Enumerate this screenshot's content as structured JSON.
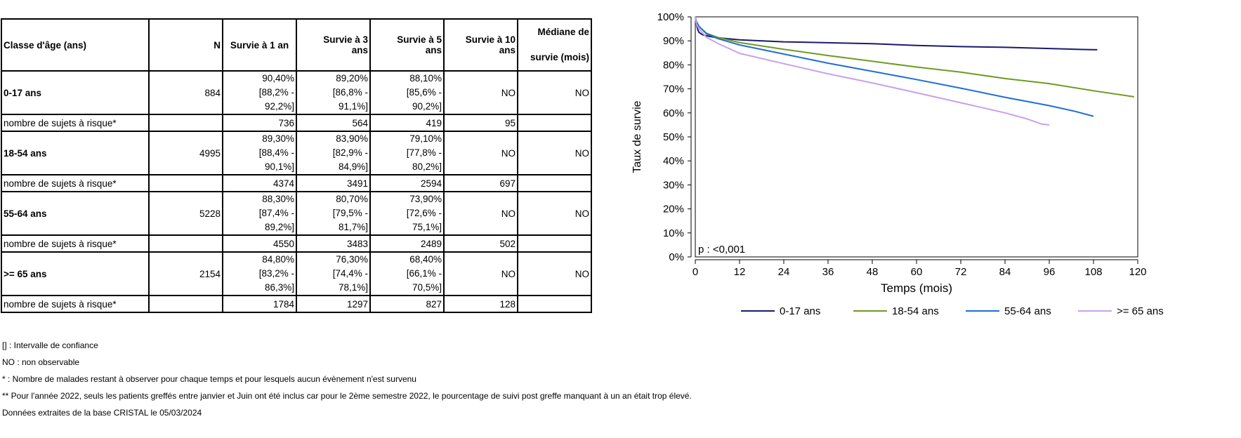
{
  "table": {
    "headers": {
      "classe": "Classe d'âge (ans)",
      "n": "N",
      "y1": "Survie à 1 an",
      "y3_a": "Survie à 3",
      "y3_b": "ans",
      "y5_a": "Survie à 5",
      "y5_b": "ans",
      "y10_a": "Survie à 10",
      "y10_b": "ans",
      "med_a": "Médiane de",
      "med_b": "survie (mois)"
    },
    "groups": [
      {
        "label": "0-17 ans",
        "n": "884",
        "y1": {
          "v": "90,40%",
          "lo": "[88,2% -",
          "hi": "92,2%]"
        },
        "y3": {
          "v": "89,20%",
          "lo": "[86,8% -",
          "hi": "91,1%]"
        },
        "y5": {
          "v": "88,10%",
          "lo": "[85,6% -",
          "hi": "90,2%]"
        },
        "y10": "NO",
        "median": "NO",
        "risk": {
          "label": "nombre de sujets à risque*",
          "y1": "736",
          "y3": "564",
          "y5": "419",
          "y10": "95"
        }
      },
      {
        "label": "18-54 ans",
        "n": "4995",
        "y1": {
          "v": "89,30%",
          "lo": "[88,4% -",
          "hi": "90,1%]"
        },
        "y3": {
          "v": "83,90%",
          "lo": "[82,9% -",
          "hi": "84,9%]"
        },
        "y5": {
          "v": "79,10%",
          "lo": "[77,8% -",
          "hi": "80,2%]"
        },
        "y10": "NO",
        "median": "NO",
        "risk": {
          "label": "nombre de sujets à risque*",
          "y1": "4374",
          "y3": "3491",
          "y5": "2594",
          "y10": "697"
        }
      },
      {
        "label": "55-64 ans",
        "n": "5228",
        "y1": {
          "v": "88,30%",
          "lo": "[87,4% -",
          "hi": "89,2%]"
        },
        "y3": {
          "v": "80,70%",
          "lo": "[79,5% -",
          "hi": "81,7%]"
        },
        "y5": {
          "v": "73,90%",
          "lo": "[72,6% -",
          "hi": "75,1%]"
        },
        "y10": "NO",
        "median": "NO",
        "risk": {
          "label": "nombre de sujets à risque*",
          "y1": "4550",
          "y3": "3483",
          "y5": "2489",
          "y10": "502"
        }
      },
      {
        "label": ">= 65 ans",
        "n": "2154",
        "y1": {
          "v": "84,80%",
          "lo": "[83,2% -",
          "hi": "86,3%]"
        },
        "y3": {
          "v": "76,30%",
          "lo": "[74,4% -",
          "hi": "78,1%]"
        },
        "y5": {
          "v": "68,40%",
          "lo": "[66,1% -",
          "hi": "70,5%]"
        },
        "y10": "NO",
        "median": "NO",
        "risk": {
          "label": "nombre de sujets à risque*",
          "y1": "1784",
          "y3": "1297",
          "y5": "827",
          "y10": "128"
        }
      }
    ]
  },
  "notes": [
    "[] : Intervalle de confiance",
    "NO : non observable",
    "* : Nombre de malades restant à observer pour chaque temps et pour lesquels aucun évènement n'est survenu",
    "** Pour l'année 2022, seuls les patients greffés entre janvier et Juin ont été inclus car pour le 2ème semestre 2022, le pourcentage de suivi post greffe manquant à un an était trop élevé.",
    "Données extraites de la base CRISTAL le 05/03/2024"
  ],
  "chart_data": {
    "type": "line",
    "title": "",
    "xlabel": "Temps (mois)",
    "ylabel": "Taux de survie",
    "xlim": [
      0,
      120
    ],
    "ylim": [
      0,
      100
    ],
    "xticks": [
      0,
      12,
      24,
      36,
      48,
      60,
      72,
      84,
      96,
      108,
      120
    ],
    "yticks": [
      0,
      10,
      20,
      30,
      40,
      50,
      60,
      70,
      80,
      90,
      100
    ],
    "ytick_suffix": "%",
    "grid": false,
    "legend_position": "bottom",
    "annotation": "p : <0,001",
    "series": [
      {
        "name": "0-17 ans",
        "color": "#1a1a6e",
        "points": [
          [
            0,
            100
          ],
          [
            0.3,
            97
          ],
          [
            0.7,
            94.5
          ],
          [
            1,
            93.5
          ],
          [
            2,
            92.5
          ],
          [
            4,
            91.8
          ],
          [
            6,
            91.3
          ],
          [
            12,
            90.4
          ],
          [
            24,
            89.6
          ],
          [
            36,
            89.2
          ],
          [
            48,
            88.8
          ],
          [
            60,
            88.1
          ],
          [
            72,
            87.6
          ],
          [
            84,
            87.3
          ],
          [
            96,
            86.8
          ],
          [
            105,
            86.4
          ],
          [
            109,
            86.3
          ]
        ]
      },
      {
        "name": "18-54 ans",
        "color": "#6e9b22",
        "points": [
          [
            0,
            100
          ],
          [
            0.3,
            98
          ],
          [
            1,
            96
          ],
          [
            3,
            93.2
          ],
          [
            6,
            91.5
          ],
          [
            12,
            89.3
          ],
          [
            24,
            86.5
          ],
          [
            36,
            83.9
          ],
          [
            48,
            81.5
          ],
          [
            60,
            79.1
          ],
          [
            72,
            77
          ],
          [
            84,
            74.3
          ],
          [
            96,
            72.2
          ],
          [
            108,
            69.2
          ],
          [
            119,
            66.7
          ]
        ]
      },
      {
        "name": "55-64 ans",
        "color": "#1e6ed6",
        "points": [
          [
            0,
            100
          ],
          [
            0.3,
            98
          ],
          [
            1,
            96
          ],
          [
            3,
            93
          ],
          [
            6,
            91
          ],
          [
            12,
            88.3
          ],
          [
            24,
            84.5
          ],
          [
            36,
            80.7
          ],
          [
            48,
            77.3
          ],
          [
            60,
            73.9
          ],
          [
            72,
            70.3
          ],
          [
            84,
            66.5
          ],
          [
            96,
            63
          ],
          [
            103,
            60.6
          ],
          [
            108,
            58.6
          ]
        ]
      },
      {
        "name": ">= 65 ans",
        "color": "#c8a0ec",
        "points": [
          [
            0,
            100
          ],
          [
            0.3,
            97
          ],
          [
            1,
            95
          ],
          [
            3,
            91.5
          ],
          [
            6,
            89
          ],
          [
            12,
            84.8
          ],
          [
            24,
            80.5
          ],
          [
            36,
            76.3
          ],
          [
            48,
            72.5
          ],
          [
            60,
            68.4
          ],
          [
            72,
            64.2
          ],
          [
            84,
            60
          ],
          [
            90,
            57.5
          ],
          [
            94,
            55.3
          ],
          [
            96,
            55
          ]
        ]
      }
    ]
  }
}
